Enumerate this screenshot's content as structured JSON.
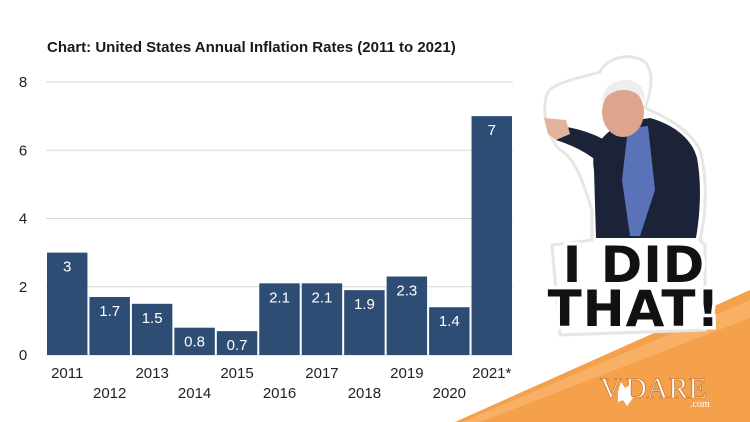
{
  "chart_data": {
    "type": "bar",
    "title": "Chart: United States Annual Inflation Rates (2011 to 2021)",
    "categories": [
      "2011",
      "2012",
      "2013",
      "2014",
      "2015",
      "2016",
      "2017",
      "2018",
      "2019",
      "2020",
      "2021*"
    ],
    "values": [
      3,
      1.7,
      1.5,
      0.8,
      0.7,
      2.1,
      2.1,
      1.9,
      2.3,
      1.4,
      7
    ],
    "data_labels": [
      "3",
      "1.7",
      "1.5",
      "0.8",
      "0.7",
      "2.1",
      "2.1",
      "1.9",
      "2.3",
      "1.4",
      "7"
    ],
    "y_ticks": [
      0,
      2,
      4,
      6,
      8
    ],
    "ylim": [
      0,
      8
    ],
    "grid": true,
    "legend": "none",
    "bar_color": "#2e4d74",
    "grid_color": "#d9d9d9"
  },
  "sticker": {
    "line1": "I DID",
    "line2": "THAT!"
  },
  "logo": {
    "text_prefix": "V",
    "text_suffix": "DARE",
    "domain": ".com",
    "accent_color": "#f5a04a"
  }
}
